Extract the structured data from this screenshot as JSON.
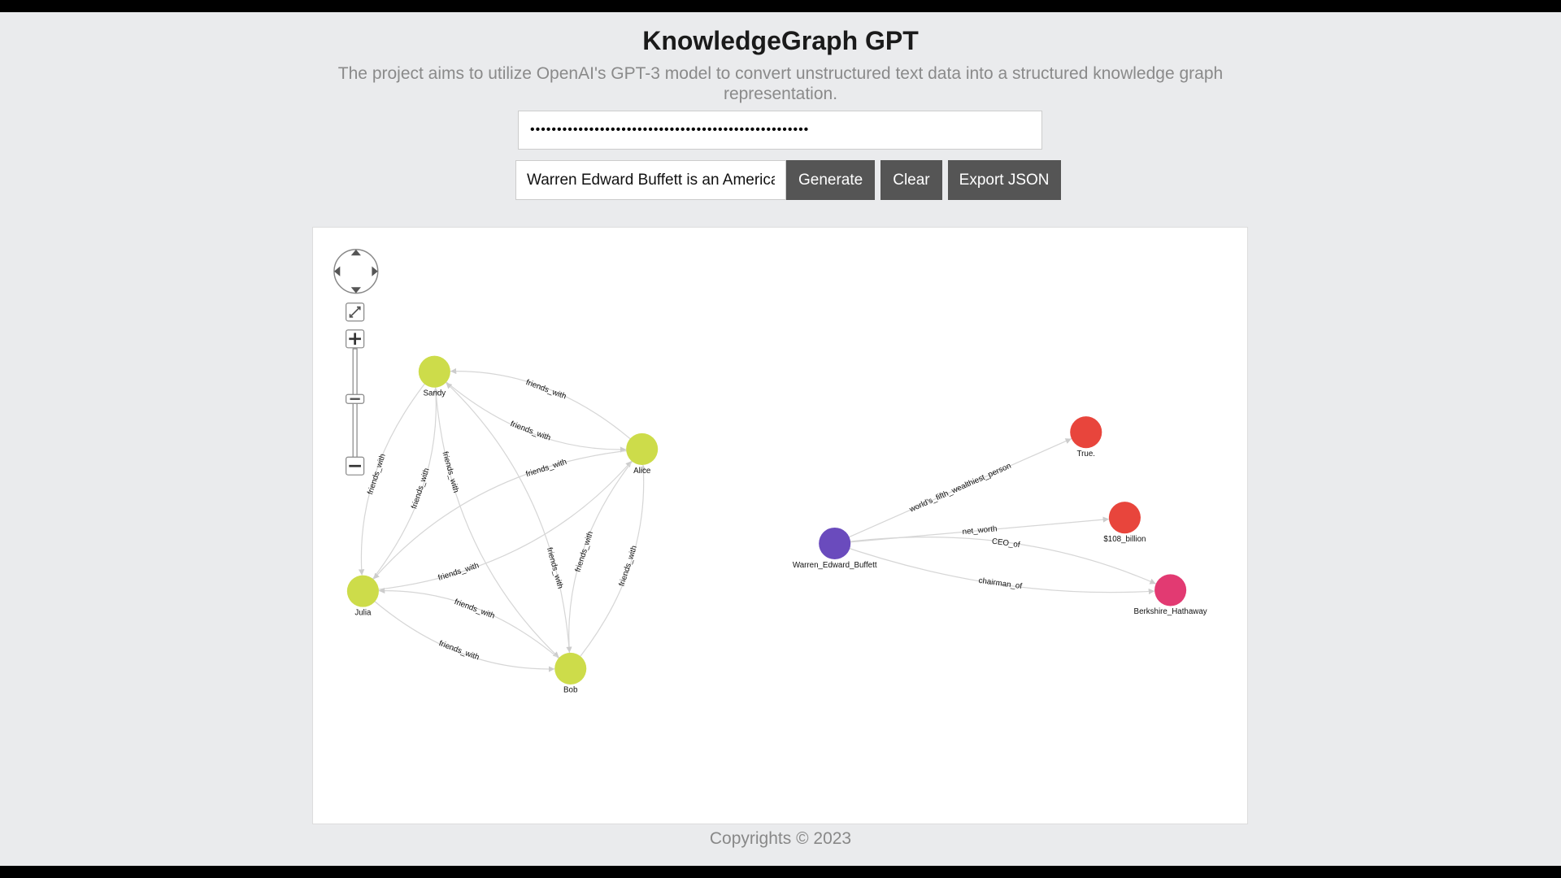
{
  "header": {
    "title": "KnowledgeGraph GPT",
    "subtitle": "The project aims to utilize OpenAI's GPT-3 model to convert unstructured text data into a structured knowledge graph representation."
  },
  "api_key": {
    "value": "••••••••••••••••••••••••••••••••••••••••••••••••••••"
  },
  "prompt": {
    "value": "Warren Edward Buffett is an American"
  },
  "buttons": {
    "generate": "Generate",
    "clear": "Clear",
    "export": "Export JSON"
  },
  "graph": {
    "nodes": [
      {
        "id": "Sandy",
        "color": "#cddc4a"
      },
      {
        "id": "Alice",
        "color": "#cddc4a"
      },
      {
        "id": "Julia",
        "color": "#cddc4a"
      },
      {
        "id": "Bob",
        "color": "#cddc4a"
      },
      {
        "id": "Warren_Edward_Buffett",
        "color": "#6a4bbd"
      },
      {
        "id": "True.",
        "color": "#e8453c"
      },
      {
        "id": "$108_billion",
        "color": "#e8453c"
      },
      {
        "id": "Berkshire_Hathaway",
        "color": "#e23a72"
      }
    ],
    "edges": [
      {
        "from": "Sandy",
        "to": "Alice",
        "label": "friends_with"
      },
      {
        "from": "Alice",
        "to": "Sandy",
        "label": "friends_with"
      },
      {
        "from": "Sandy",
        "to": "Julia",
        "label": "friends_with"
      },
      {
        "from": "Julia",
        "to": "Sandy",
        "label": "friends_with"
      },
      {
        "from": "Sandy",
        "to": "Bob",
        "label": "friends_with"
      },
      {
        "from": "Bob",
        "to": "Sandy",
        "label": "friends_with"
      },
      {
        "from": "Alice",
        "to": "Julia",
        "label": "friends_with"
      },
      {
        "from": "Julia",
        "to": "Alice",
        "label": "friends_with"
      },
      {
        "from": "Alice",
        "to": "Bob",
        "label": "friends_with"
      },
      {
        "from": "Bob",
        "to": "Alice",
        "label": "friends_with"
      },
      {
        "from": "Julia",
        "to": "Bob",
        "label": "friends_with"
      },
      {
        "from": "Bob",
        "to": "Julia",
        "label": "friends_with"
      },
      {
        "from": "Warren_Edward_Buffett",
        "to": "True.",
        "label": "world's_fifth_wealthiest_person"
      },
      {
        "from": "Warren_Edward_Buffett",
        "to": "$108_billion",
        "label": "net_worth"
      },
      {
        "from": "Warren_Edward_Buffett",
        "to": "Berkshire_Hathaway",
        "label": "chairman_of"
      },
      {
        "from": "Warren_Edward_Buffett",
        "to": "Berkshire_Hathaway",
        "label": "CEO_of"
      }
    ]
  },
  "footer": {
    "text": "Copyrights © 2023"
  }
}
